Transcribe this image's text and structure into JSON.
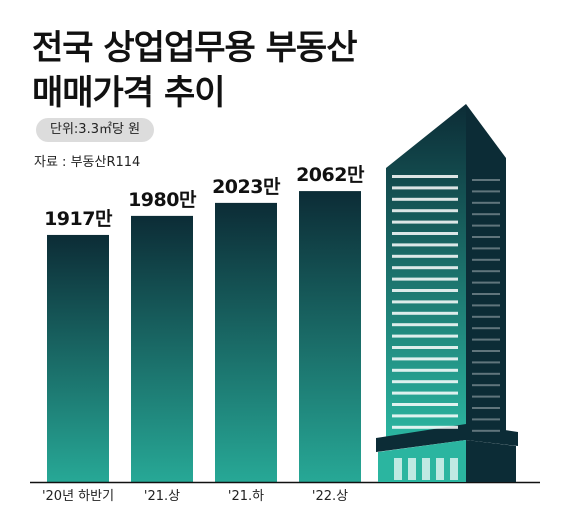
{
  "title_line1": "전국 상업업무용 부동산",
  "title_line2": "매매가격 추이",
  "unit": "단위:3.3㎡당 원",
  "source": "자료 : 부동산R114",
  "colors": {
    "bar_top": "#0c2c36",
    "bar_bottom": "#27a896",
    "building_top": "#0c2c36",
    "building_bottom": "#2bb5a0",
    "building_window": "#ffffff"
  },
  "chart_data": {
    "type": "bar",
    "categories": [
      "'20년 하반기",
      "'21.상",
      "'21.하",
      "'22.상"
    ],
    "values": [
      1917,
      1980,
      2023,
      2062
    ],
    "data_labels": [
      "1917만",
      "1980만",
      "2023만",
      "2062만"
    ],
    "title": "전국 상업업무용 부동산 매매가격 추이",
    "xlabel": "",
    "ylabel": "",
    "grid": false,
    "legend": "none"
  }
}
